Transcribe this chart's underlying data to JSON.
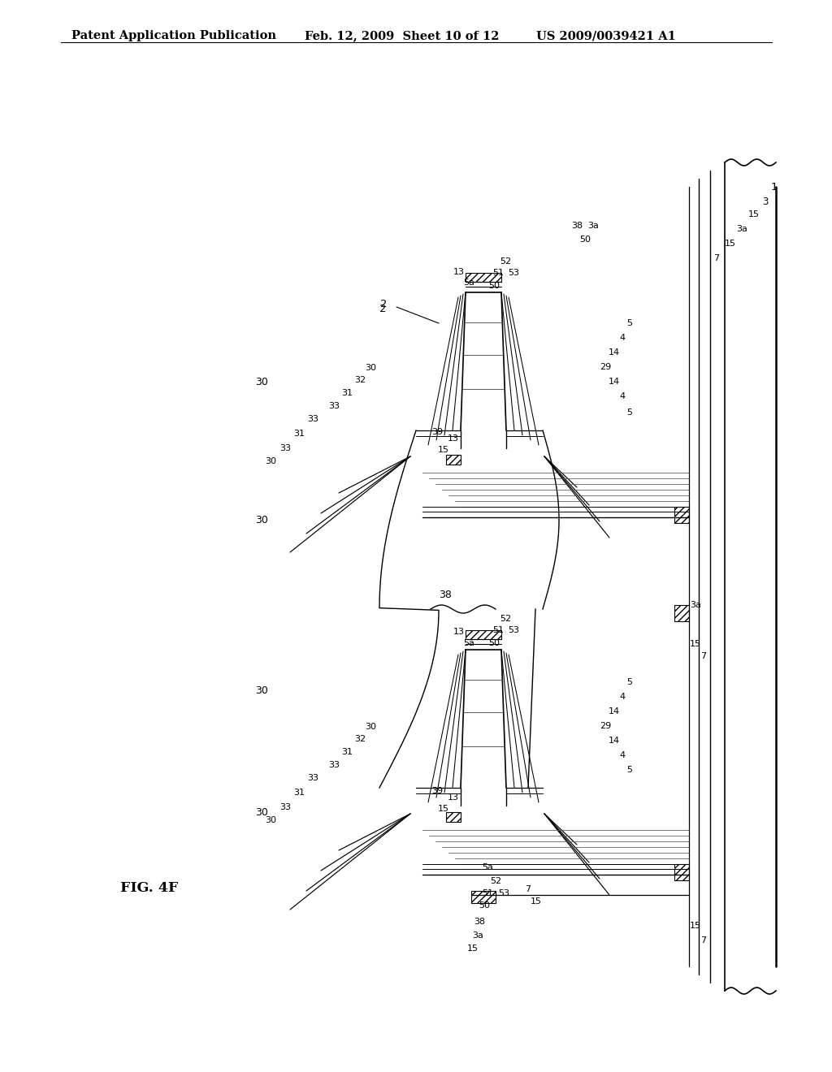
{
  "header_left": "Patent Application Publication",
  "header_center": "Feb. 12, 2009  Sheet 10 of 12",
  "header_right": "US 2009/0039421 A1",
  "figure_label": "FIG. 4F",
  "bg_color": "#ffffff",
  "line_color": "#000000"
}
